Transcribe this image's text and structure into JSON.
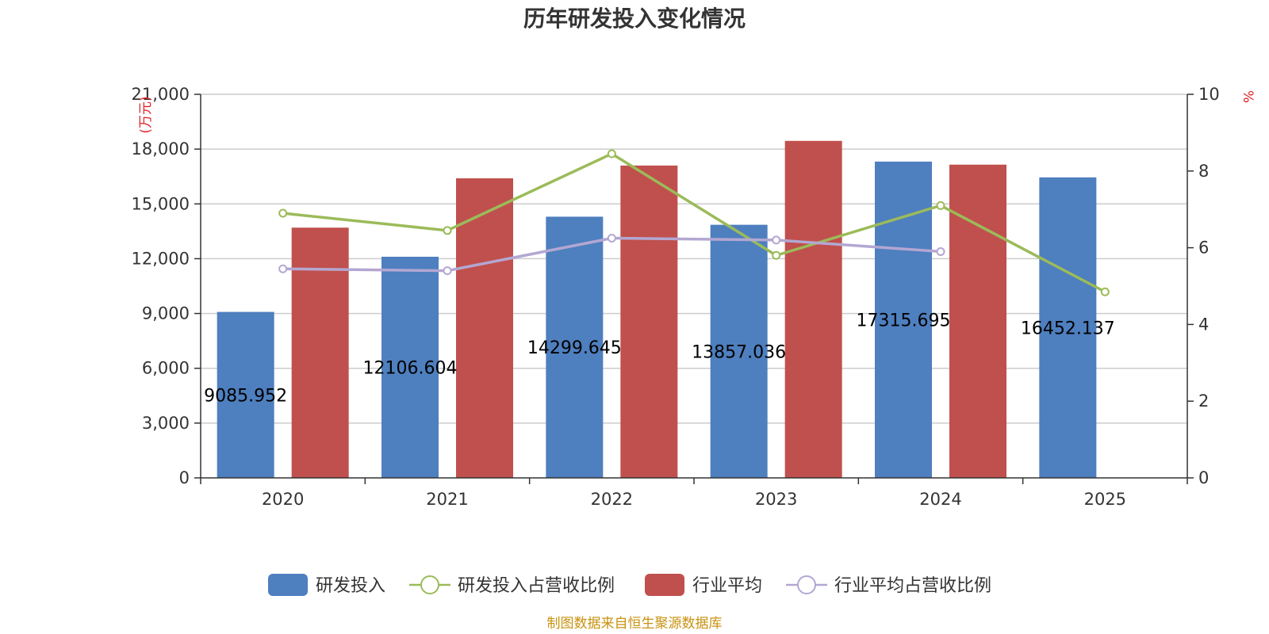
{
  "chart_data": {
    "type": "bar",
    "title": "历年研发投入变化情况",
    "categories": [
      "2020",
      "2021",
      "2022",
      "2023",
      "2024",
      "2025"
    ],
    "left_axis": {
      "unit": "(万元)",
      "ylim": [
        0,
        21000
      ],
      "ticks": [
        "0",
        "3,000",
        "6,000",
        "9,000",
        "12,000",
        "15,000",
        "18,000",
        "21,000"
      ],
      "tick_values": [
        0,
        3000,
        6000,
        9000,
        12000,
        15000,
        18000,
        21000
      ]
    },
    "right_axis": {
      "unit": "%",
      "ylim": [
        0,
        10
      ],
      "ticks": [
        "0",
        "2",
        "4",
        "6",
        "8",
        "10"
      ],
      "tick_values": [
        0,
        2,
        4,
        6,
        8,
        10
      ]
    },
    "grid": true,
    "legend_position": "bottom",
    "series": [
      {
        "name": "研发投入",
        "type": "bar",
        "axis": "left",
        "color": "#4e7fbf",
        "values": [
          9085.952,
          12106.604,
          14299.645,
          13857.036,
          17315.695,
          16452.137
        ],
        "labels": [
          "9085.952",
          "12106.604",
          "14299.645",
          "13857.036",
          "17315.695",
          "16452.137"
        ]
      },
      {
        "name": "研发投入占营收比例",
        "type": "line",
        "axis": "right",
        "color": "#9bbb59",
        "values": [
          6.9,
          6.45,
          8.45,
          5.8,
          7.1,
          4.85
        ]
      },
      {
        "name": "行业平均",
        "type": "bar",
        "axis": "left",
        "color": "#c0504d",
        "values": [
          13700,
          16400,
          17100,
          18450,
          17150,
          null
        ]
      },
      {
        "name": "行业平均占营收比例",
        "type": "line",
        "axis": "right",
        "color": "#b3a7d2",
        "values": [
          5.45,
          5.4,
          6.25,
          6.2,
          5.9,
          null
        ]
      }
    ]
  },
  "footer": {
    "source": "制图数据来自恒生聚源数据库"
  }
}
